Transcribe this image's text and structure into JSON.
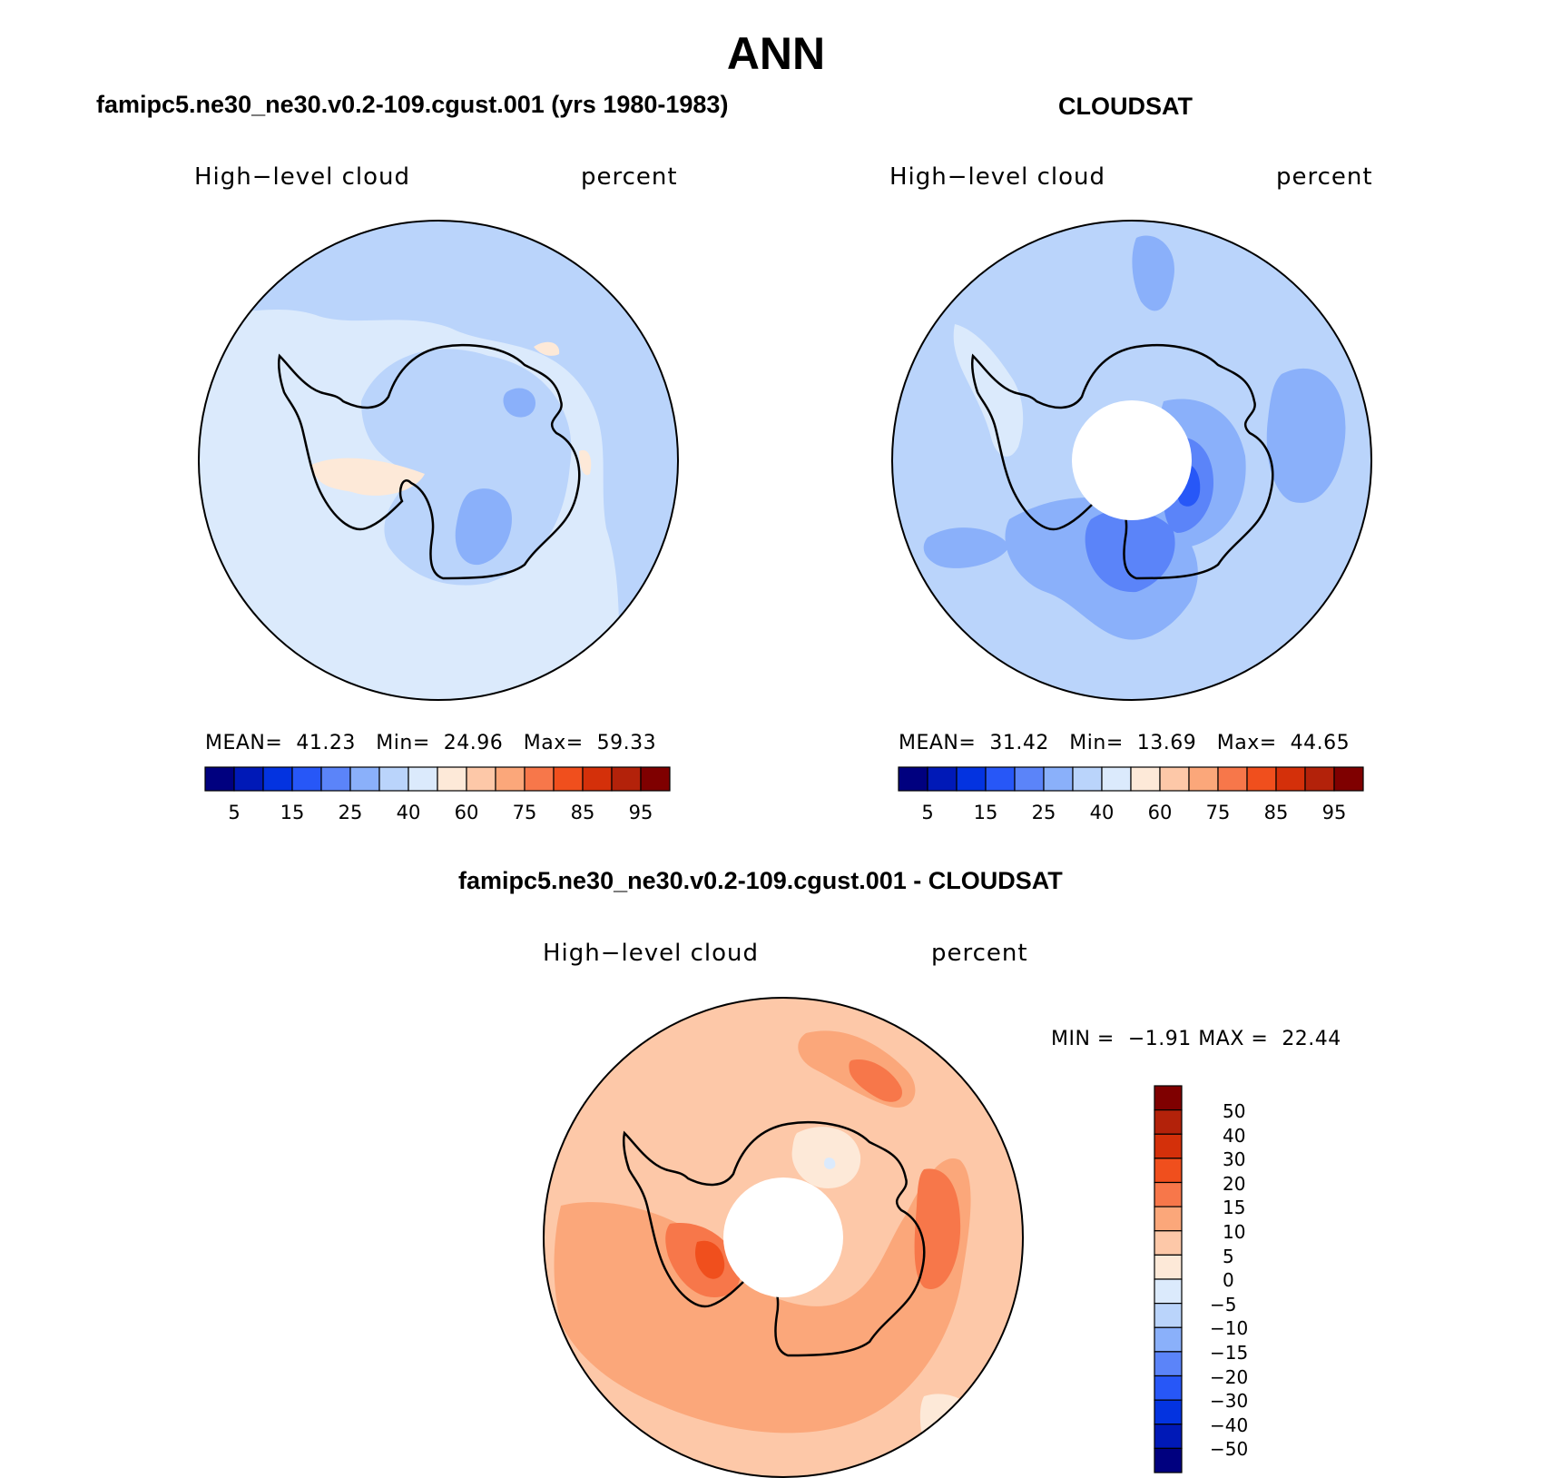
{
  "title": "ANN",
  "colors": {
    "seq_palette": [
      "#00007f",
      "#0019b7",
      "#0333e0",
      "#2757f7",
      "#5b84f9",
      "#8ab0fa",
      "#bad4fb",
      "#dbeafc",
      "#fde9d8",
      "#fdc8a8",
      "#fba77a",
      "#f7774a",
      "#f04f1d",
      "#d4300a",
      "#b3220a",
      "#7f0000"
    ],
    "diff_palette": [
      "#00007f",
      "#0019b7",
      "#0333e0",
      "#2757f7",
      "#5b84f9",
      "#8ab0fa",
      "#bad4fb",
      "#dbeafc",
      "#fde9d8",
      "#fdc8a8",
      "#fba77a",
      "#f7774a",
      "#f04f1d",
      "#d4300a",
      "#b3220a",
      "#7f0000"
    ]
  },
  "chart_data": [
    {
      "type": "heatmap",
      "projection": "south-polar stereographic",
      "panel_title": "famipc5.ne30_ne30.v0.2-109.cgust.001 (yrs 1980-1983)",
      "left_label": "High−level cloud",
      "right_label": "percent",
      "stats": {
        "mean_label": "MEAN=",
        "mean": "41.23",
        "min_label": "Min=",
        "min": "24.96",
        "max_label": "Max=",
        "max": "59.33"
      },
      "levels": [
        5,
        10,
        15,
        20,
        25,
        30,
        40,
        50,
        60,
        70,
        75,
        80,
        85,
        90,
        95
      ],
      "tick_labels": [
        "5",
        "15",
        "25",
        "40",
        "60",
        "75",
        "85",
        "95"
      ],
      "region_levels": {
        "background": 40,
        "outer_band": 30,
        "interior_low": 25,
        "interior_min": 20,
        "peninsula_high": 50
      }
    },
    {
      "type": "heatmap",
      "projection": "south-polar stereographic",
      "panel_title": "CLOUDSAT",
      "left_label": "High−level cloud",
      "right_label": "percent",
      "stats": {
        "mean_label": "MEAN=",
        "mean": "31.42",
        "min_label": "Min=",
        "min": "13.69",
        "max_label": "Max=",
        "max": "44.65"
      },
      "levels": [
        5,
        10,
        15,
        20,
        25,
        30,
        40,
        50,
        60,
        70,
        75,
        80,
        85,
        90,
        95
      ],
      "tick_labels": [
        "5",
        "15",
        "25",
        "40",
        "60",
        "75",
        "85",
        "95"
      ],
      "region_levels": {
        "background": 30,
        "ocean_patches": 25,
        "east_min": 15,
        "peninsula_high": 40
      },
      "missing_data": "pole hole"
    },
    {
      "type": "heatmap",
      "projection": "south-polar stereographic",
      "panel_title": "famipc5.ne30_ne30.v0.2-109.cgust.001 - CLOUDSAT",
      "left_label": "High−level cloud",
      "right_label": "percent",
      "stats": {
        "min_label": "MIN =",
        "min": "−1.91",
        "max_label": "MAX =",
        "max": "22.44"
      },
      "levels": [
        -50,
        -40,
        -30,
        -20,
        -15,
        -10,
        -5,
        0,
        5,
        10,
        15,
        20,
        30,
        40,
        50
      ],
      "tick_labels": [
        "50",
        "40",
        "30",
        "20",
        "15",
        "10",
        "5",
        "0",
        "−5",
        "−10",
        "−15",
        "−20",
        "−30",
        "−40",
        "−50"
      ],
      "region_levels": {
        "background": 5,
        "ring": 10,
        "maxima": 15,
        "peak": 20,
        "interior_min": 0
      },
      "missing_data": "pole hole"
    }
  ]
}
